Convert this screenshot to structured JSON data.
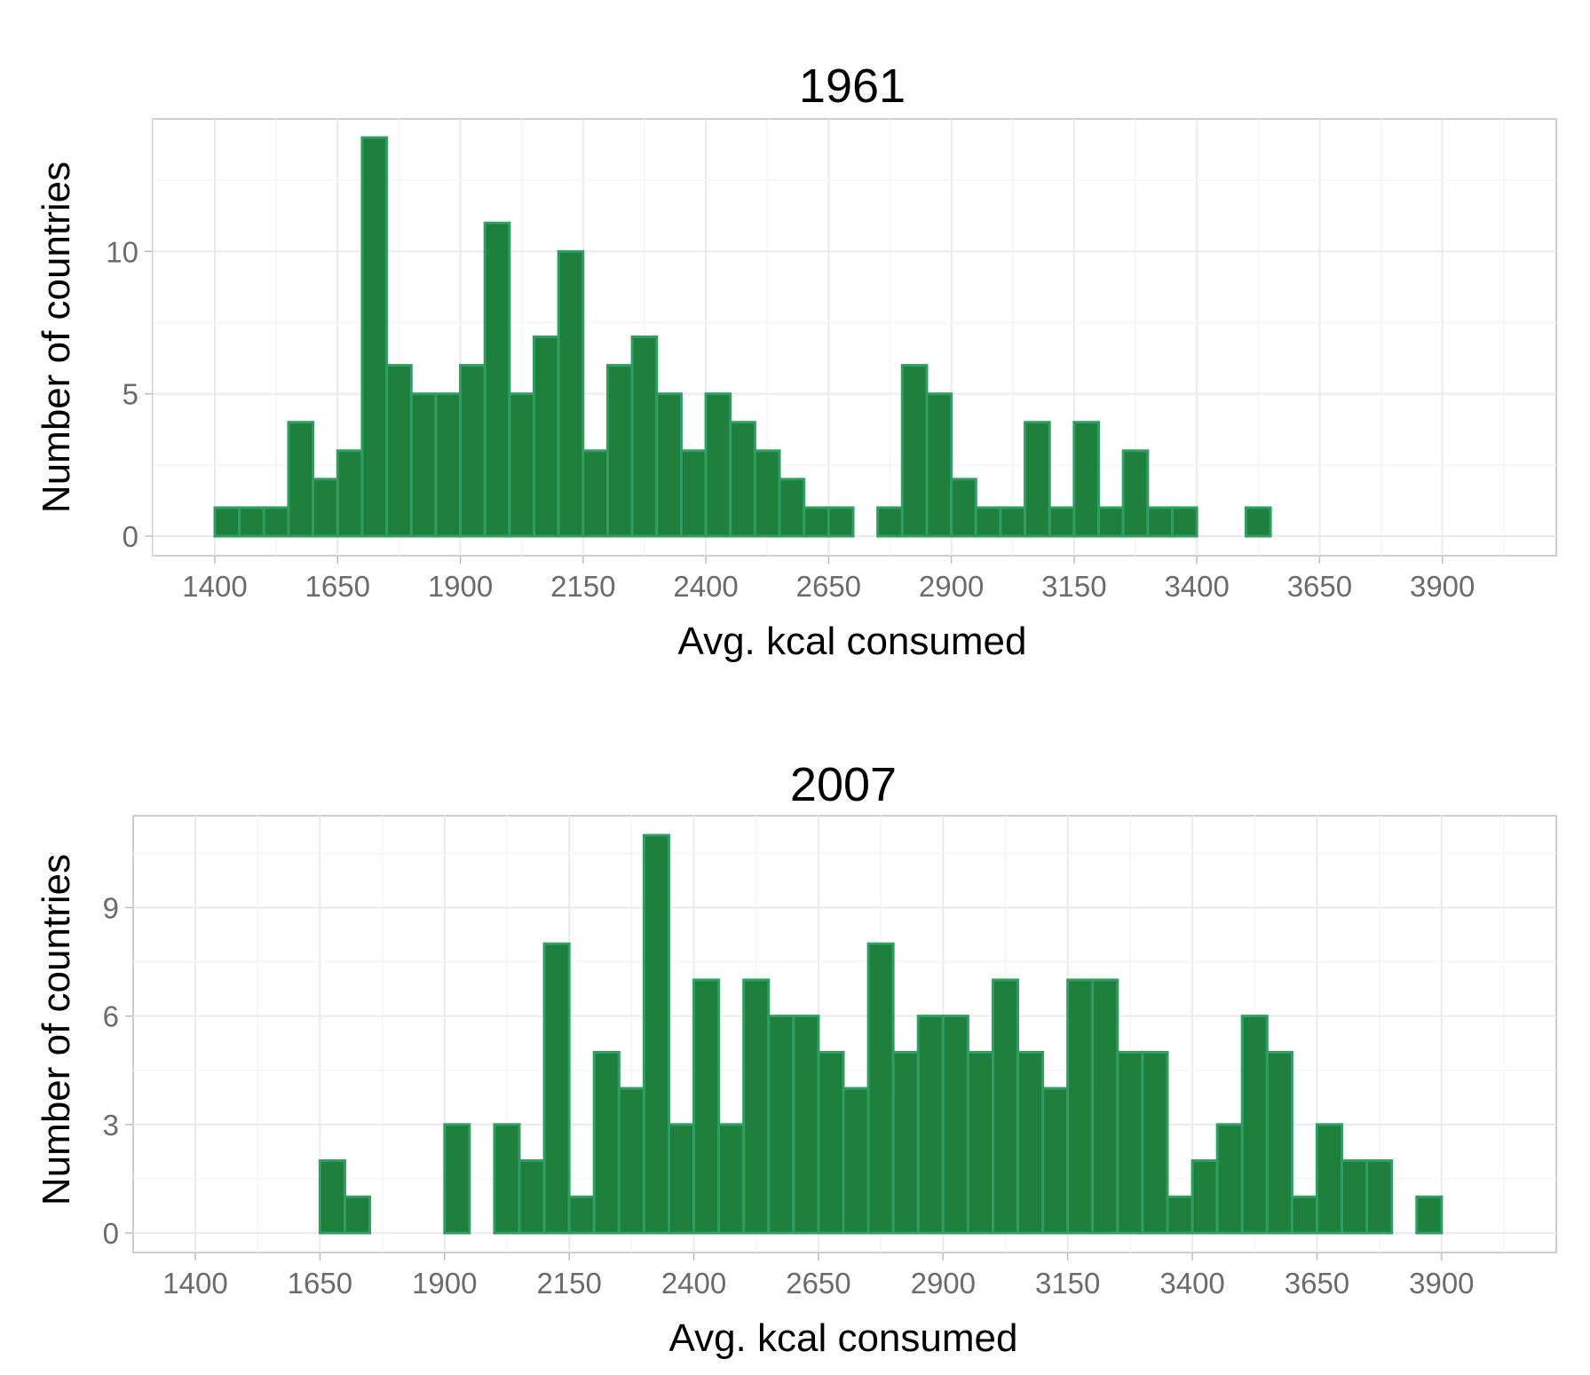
{
  "theme": {
    "bar_fill": "#1F7F3C",
    "bar_outline": "#2E9E62",
    "grid_color": "#EBEBEB",
    "border_color": "#BDBDBD",
    "tick_label_color": "#6B6B6B"
  },
  "chart_data": [
    {
      "type": "bar",
      "title": "1961",
      "xlabel": "Avg. kcal consumed",
      "ylabel": "Number of countries",
      "bin_width": 50,
      "bins_start": 1400,
      "bins_end": 4000,
      "xlim": [
        1400,
        4000
      ],
      "ylim": [
        0,
        14
      ],
      "x_ticks": [
        1400,
        1650,
        1900,
        2150,
        2400,
        2650,
        2900,
        3150,
        3400,
        3650,
        3900
      ],
      "y_ticks": [
        0,
        5,
        10
      ],
      "grid": true,
      "counts": [
        1,
        1,
        1,
        4,
        2,
        3,
        14,
        6,
        5,
        5,
        6,
        11,
        5,
        7,
        10,
        3,
        6,
        7,
        5,
        3,
        5,
        4,
        3,
        2,
        1,
        1,
        0,
        1,
        6,
        5,
        2,
        1,
        1,
        4,
        1,
        4,
        1,
        3,
        1,
        1,
        0,
        0,
        1,
        0,
        0,
        0,
        0,
        0,
        0,
        0,
        0,
        0
      ]
    },
    {
      "type": "bar",
      "title": "2007",
      "xlabel": "Avg. kcal consumed",
      "ylabel": "Number of countries",
      "bin_width": 50,
      "bins_start": 1400,
      "bins_end": 4000,
      "xlim": [
        1400,
        4000
      ],
      "ylim": [
        0,
        11
      ],
      "x_ticks": [
        1400,
        1650,
        1900,
        2150,
        2400,
        2650,
        2900,
        3150,
        3400,
        3650,
        3900
      ],
      "y_ticks": [
        0,
        3,
        6,
        9
      ],
      "grid": true,
      "counts": [
        0,
        0,
        0,
        0,
        0,
        2,
        1,
        0,
        0,
        0,
        3,
        0,
        3,
        2,
        8,
        1,
        5,
        4,
        11,
        3,
        7,
        3,
        7,
        6,
        6,
        5,
        4,
        8,
        5,
        6,
        6,
        5,
        7,
        5,
        4,
        7,
        7,
        5,
        5,
        1,
        2,
        3,
        6,
        5,
        1,
        3,
        2,
        2,
        0,
        1,
        0,
        0
      ]
    }
  ]
}
